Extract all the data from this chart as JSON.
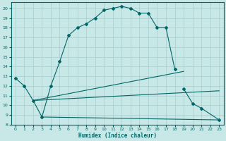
{
  "title": "",
  "xlabel": "Humidex (Indice chaleur)",
  "bg_color": "#c8e8e8",
  "line_color": "#006666",
  "grid_color": "#aacccc",
  "xlim": [
    -0.5,
    23.5
  ],
  "ylim": [
    8,
    20.6
  ],
  "xticks": [
    0,
    1,
    2,
    3,
    4,
    5,
    6,
    7,
    8,
    9,
    10,
    11,
    12,
    13,
    14,
    15,
    16,
    17,
    18,
    19,
    20,
    21,
    22,
    23
  ],
  "yticks": [
    8,
    9,
    10,
    11,
    12,
    13,
    14,
    15,
    16,
    17,
    18,
    19,
    20
  ],
  "main_curve": {
    "x": [
      0,
      1,
      2,
      3,
      4,
      5,
      6,
      7,
      8,
      9,
      10,
      11,
      12,
      13,
      14,
      15,
      16,
      17,
      18
    ],
    "y": [
      12.8,
      12.0,
      10.5,
      8.8,
      12.0,
      14.5,
      17.2,
      18.0,
      18.4,
      19.0,
      19.8,
      20.0,
      20.2,
      20.0,
      19.5,
      19.5,
      18.0,
      18.0,
      13.7
    ]
  },
  "right_curve": {
    "x": [
      19,
      20,
      21,
      23
    ],
    "y": [
      11.7,
      10.2,
      9.7,
      8.5
    ]
  },
  "flat_line": {
    "x": [
      3,
      23
    ],
    "y": [
      8.8,
      8.5
    ]
  },
  "diag_upper": {
    "x": [
      2,
      19
    ],
    "y": [
      10.5,
      13.5
    ]
  },
  "diag_lower": {
    "x": [
      2,
      23
    ],
    "y": [
      10.5,
      11.5
    ]
  },
  "marker_x": [
    0,
    1,
    2,
    3,
    4,
    5,
    6,
    7,
    8,
    9,
    10,
    11,
    12,
    13,
    14,
    15,
    16,
    17,
    18,
    19,
    20,
    21,
    23
  ],
  "marker_y": [
    12.8,
    12.0,
    10.5,
    8.8,
    12.0,
    14.5,
    17.2,
    18.0,
    18.4,
    19.0,
    19.8,
    20.0,
    20.2,
    20.0,
    19.5,
    19.5,
    18.0,
    18.0,
    13.7,
    11.7,
    10.2,
    9.7,
    8.5
  ]
}
